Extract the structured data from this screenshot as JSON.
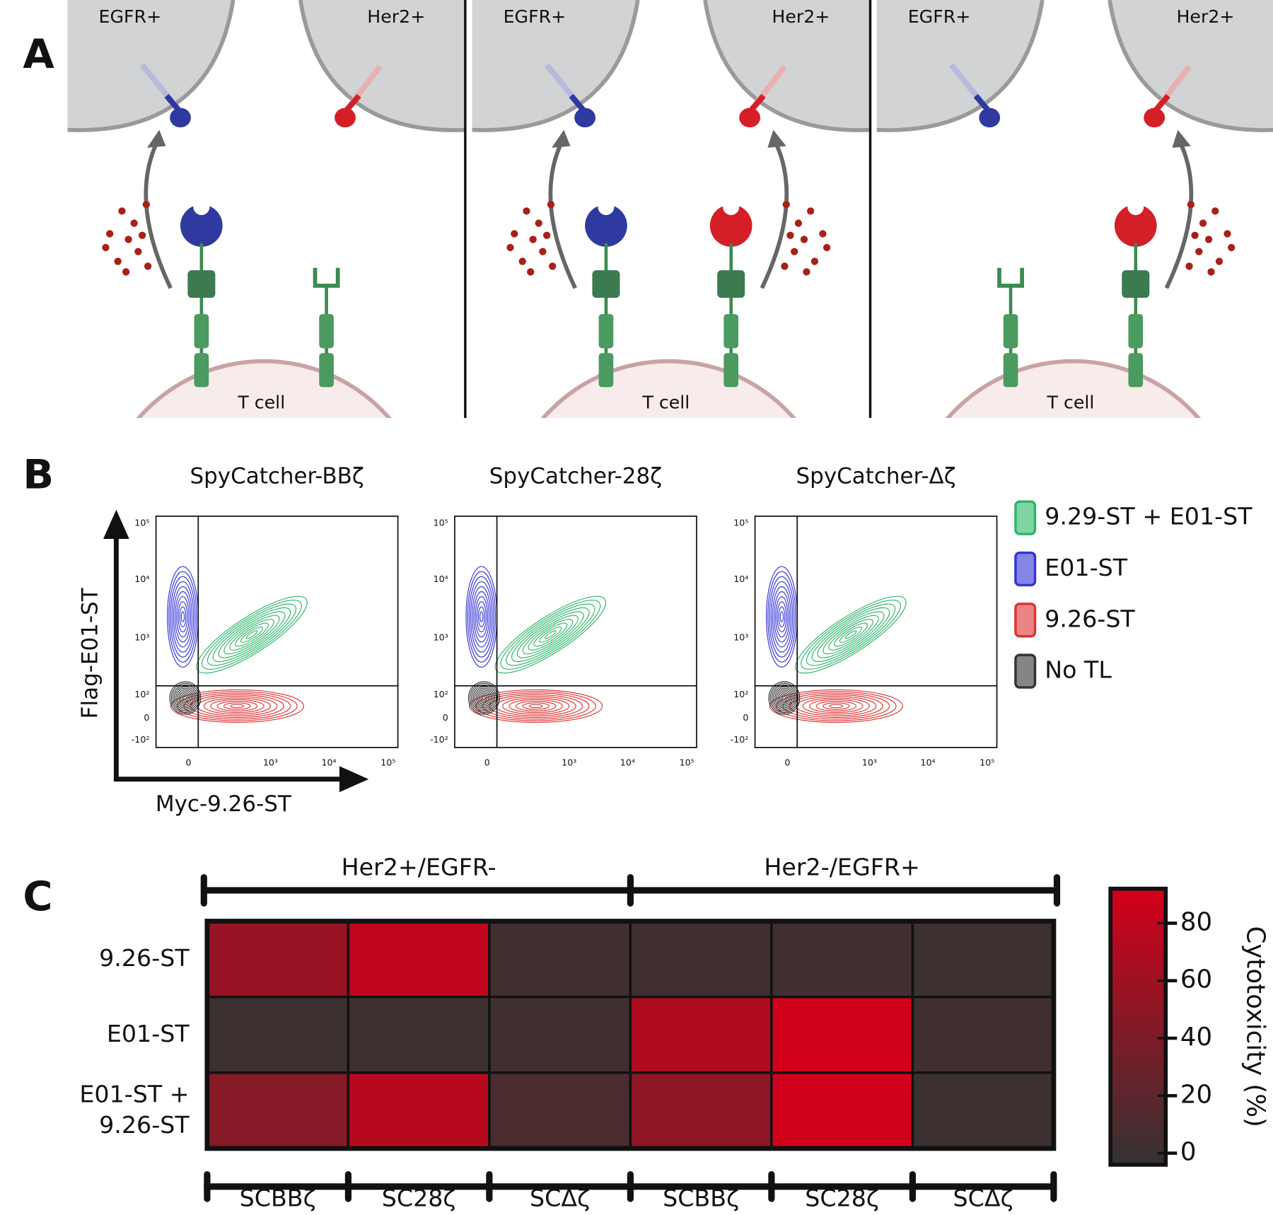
{
  "panel_letters": [
    "A",
    "B",
    "C"
  ],
  "panel_a": {
    "subpanels": [
      {
        "left_cell": "EGFR+",
        "right_cell": "Her2+",
        "t_cell": "T cell"
      },
      {
        "left_cell": "EGFR+",
        "right_cell": "Her2+",
        "t_cell": "T cell"
      },
      {
        "left_cell": "EGFR+",
        "right_cell": "Her2+",
        "t_cell": "T cell"
      }
    ]
  },
  "panel_b": {
    "plots": [
      {
        "title": "SpyCatcher-BBζ"
      },
      {
        "title": "SpyCatcher-28ζ"
      },
      {
        "title": "SpyCatcher-Δζ"
      }
    ],
    "y_axis_label": "Flag-E01-ST",
    "x_axis_label": "Myc-9.26-ST",
    "y_tick_labels": [
      "10⁵",
      "10⁴",
      "10³",
      "10²",
      "0",
      "-10²"
    ],
    "x_tick_labels": [
      "0",
      "10³",
      "10⁴",
      "10⁵"
    ],
    "legend": [
      {
        "name": "9.29-ST + E01-ST",
        "color": "#2fb56a"
      },
      {
        "name": "E01-ST",
        "color": "#3434d8"
      },
      {
        "name": "9.26-ST",
        "color": "#dd3333"
      },
      {
        "name": "No TL",
        "color": "#333333"
      }
    ]
  },
  "chart_data": {
    "type": "heatmap",
    "groups": [
      "Her2+/EGFR-",
      "Her2-/EGFR+"
    ],
    "x_categories": [
      "SCBBζ",
      "SC28ζ",
      "SCΔζ",
      "SCBBζ",
      "SC28ζ",
      "SCΔζ"
    ],
    "y_categories": [
      [
        "9.26-ST"
      ],
      [
        "E01-ST"
      ],
      [
        "E01-ST +",
        "9.26-ST"
      ]
    ],
    "values": [
      [
        55,
        80,
        4,
        3,
        3,
        2
      ],
      [
        2,
        2,
        3,
        70,
        90,
        3
      ],
      [
        45,
        75,
        10,
        50,
        90,
        2
      ]
    ],
    "colorbar": {
      "label": "Cytotoxicity (%)",
      "lim": [
        -4,
        92
      ],
      "ticks": [
        0,
        20,
        40,
        60,
        80
      ],
      "colors": [
        "#333333",
        "#d4001a"
      ]
    }
  }
}
